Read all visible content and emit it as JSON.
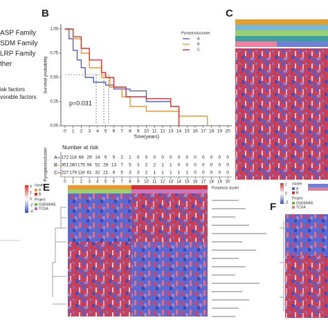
{
  "panel_a": {
    "items": [
      "ASP Family",
      "SDM Family",
      "LRP Family",
      "ther"
    ],
    "legend": [
      "isk factors",
      "vorable factors"
    ]
  },
  "panel_labels": [
    "B",
    "C",
    "E",
    "F"
  ],
  "chart_data": {
    "type": "survival",
    "ylabel": "Survival probability",
    "xlabel": "Time(years)",
    "legend_title": "Pyroptosiscluster",
    "annotation": "p=0.031",
    "xlim": [
      -0.5,
      20.5
    ],
    "ylim": [
      0,
      1.05
    ],
    "xticks": [
      0,
      1,
      2,
      3,
      4,
      5,
      6,
      7,
      8,
      9,
      10,
      11,
      12,
      13,
      14,
      15,
      16,
      17,
      18,
      19,
      20
    ],
    "yticks": [
      {
        "value": 0,
        "label": "0.00"
      },
      {
        "value": 0.25,
        "label": "0.25"
      },
      {
        "value": 0.5,
        "label": "0.50"
      },
      {
        "value": 0.75,
        "label": "0.75"
      },
      {
        "value": 1,
        "label": "1.00"
      }
    ],
    "series": [
      {
        "name": "A",
        "color": "#4a63c8",
        "x": [
          0,
          0.5,
          1,
          1.5,
          2,
          2.5,
          3.5,
          5,
          6,
          8,
          10,
          13
        ],
        "values": [
          1,
          0.9,
          0.78,
          0.68,
          0.6,
          0.5,
          0.45,
          0.42,
          0.38,
          0.36,
          0.25,
          0.25
        ]
      },
      {
        "name": "B",
        "color": "#f0962e",
        "x": [
          0,
          1,
          2,
          3,
          4.5,
          5.5,
          7,
          8,
          10,
          14,
          17,
          17.5
        ],
        "values": [
          1,
          0.9,
          0.75,
          0.6,
          0.5,
          0.4,
          0.3,
          0.2,
          0.15,
          0.1,
          0.1,
          0
        ]
      },
      {
        "name": "C",
        "color": "#d8312c",
        "x": [
          0,
          1,
          2,
          3,
          4.5,
          5,
          6,
          7.5,
          10,
          13,
          14
        ],
        "values": [
          1,
          0.92,
          0.8,
          0.68,
          0.55,
          0.5,
          0.4,
          0.3,
          0.28,
          0.2,
          0
        ]
      }
    ],
    "risk_table": {
      "title": "Number at risk",
      "ylabel": "Pyroptosiscluster",
      "rows": [
        {
          "name": "A",
          "values": [
            172,
            118,
            68,
            29,
            14,
            5,
            5,
            2,
            1,
            0,
            0,
            0,
            0,
            0,
            0,
            0,
            0,
            0,
            0,
            0,
            0
          ]
        },
        {
          "name": "B",
          "values": [
            351,
            280,
            175,
            94,
            52,
            29,
            13,
            7,
            5,
            3,
            2,
            2,
            1,
            1,
            0,
            0,
            0,
            0,
            0,
            0,
            0
          ]
        },
        {
          "name": "C",
          "values": [
            227,
            179,
            118,
            61,
            32,
            21,
            9,
            5,
            3,
            3,
            2,
            1,
            1,
            1,
            1,
            1,
            0,
            0,
            0,
            0,
            0
          ]
        }
      ]
    }
  },
  "panel_e": {
    "scale": [
      "4",
      "2",
      "0",
      "-2",
      "-4"
    ],
    "cluster_title": "cluster",
    "clusters": [
      "A",
      "B"
    ],
    "project_title": "Project",
    "projects": [
      "GSE68465",
      "TCGA"
    ],
    "column_title": "Pyroptosis cluster"
  },
  "panel_f": {
    "scale": [
      "2",
      "0",
      "-2"
    ],
    "cluster_title": "cluster",
    "clusters": [
      "A",
      "B"
    ],
    "project_title": "Project",
    "projects": [
      "GSE68465",
      "TCGA"
    ]
  }
}
